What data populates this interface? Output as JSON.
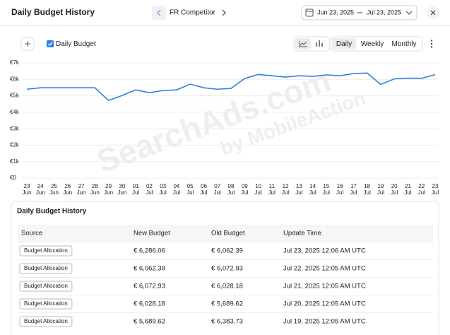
{
  "header": {
    "title": "Daily Budget History",
    "campaign": "FR Competitor",
    "date_start": "Jun 23, 2025",
    "date_end": "Jul 23, 2025"
  },
  "controls": {
    "periods": [
      "Daily",
      "Weekly",
      "Monthly"
    ],
    "active_period": 0
  },
  "watermark": [
    "SearchAds.com",
    "by MobileAction"
  ],
  "chart_data": {
    "type": "line",
    "categories": [
      "23 Jun",
      "24 Jun",
      "25 Jun",
      "26 Jun",
      "27 Jun",
      "28 Jun",
      "29 Jun",
      "30 Jun",
      "01 Jul",
      "02 Jul",
      "03 Jul",
      "04 Jul",
      "05 Jul",
      "06 Jul",
      "07 Jul",
      "08 Jul",
      "09 Jul",
      "10 Jul",
      "11 Jul",
      "12 Jul",
      "13 Jul",
      "14 Jul",
      "15 Jul",
      "16 Jul",
      "17 Jul",
      "18 Jul",
      "19 Jul",
      "20 Jul",
      "21 Jul",
      "22 Jul",
      "23 Jul"
    ],
    "series": [
      {
        "name": "Daily Budget",
        "color": "#2f7fe0",
        "values": [
          5400,
          5490,
          5490,
          5490,
          5490,
          5490,
          4720,
          5020,
          5360,
          5190,
          5320,
          5360,
          5710,
          5490,
          5400,
          5450,
          6050,
          6300,
          6220,
          6140,
          6220,
          6180,
          6270,
          6220,
          6350,
          6383.73,
          5689.62,
          6028.18,
          6072.93,
          6062.39,
          6286.06
        ]
      }
    ],
    "ylim": [
      0,
      7000
    ],
    "yticks": [
      {
        "value": 0,
        "label": "€0"
      },
      {
        "value": 1000,
        "label": "€1k"
      },
      {
        "value": 2000,
        "label": "€2k"
      },
      {
        "value": 3000,
        "label": "€3k"
      },
      {
        "value": 4000,
        "label": "€4k"
      },
      {
        "value": 5000,
        "label": "€5k"
      },
      {
        "value": 6000,
        "label": "€6k"
      },
      {
        "value": 7000,
        "label": "€7k"
      }
    ],
    "grid": true
  },
  "table": {
    "title": "Daily Budget History",
    "columns": [
      "Source",
      "New Budget",
      "Old Budget",
      "Update Time"
    ],
    "rows": [
      [
        "Budget Allocation",
        "€ 6,286.06",
        "€ 6,062.39",
        "Jul 23, 2025 12:06 AM UTC"
      ],
      [
        "Budget Allocation",
        "€ 6,062.39",
        "€ 6,072.93",
        "Jul 22, 2025 12:05 AM UTC"
      ],
      [
        "Budget Allocation",
        "€ 6,072.93",
        "€ 6,028.18",
        "Jul 21, 2025 12:05 AM UTC"
      ],
      [
        "Budget Allocation",
        "€ 6,028.18",
        "€ 5,689.62",
        "Jul 20, 2025 12:05 AM UTC"
      ],
      [
        "Budget Allocation",
        "€ 5,689.62",
        "€ 6,383.73",
        "Jul 19, 2025 12:05 AM UTC"
      ]
    ]
  }
}
